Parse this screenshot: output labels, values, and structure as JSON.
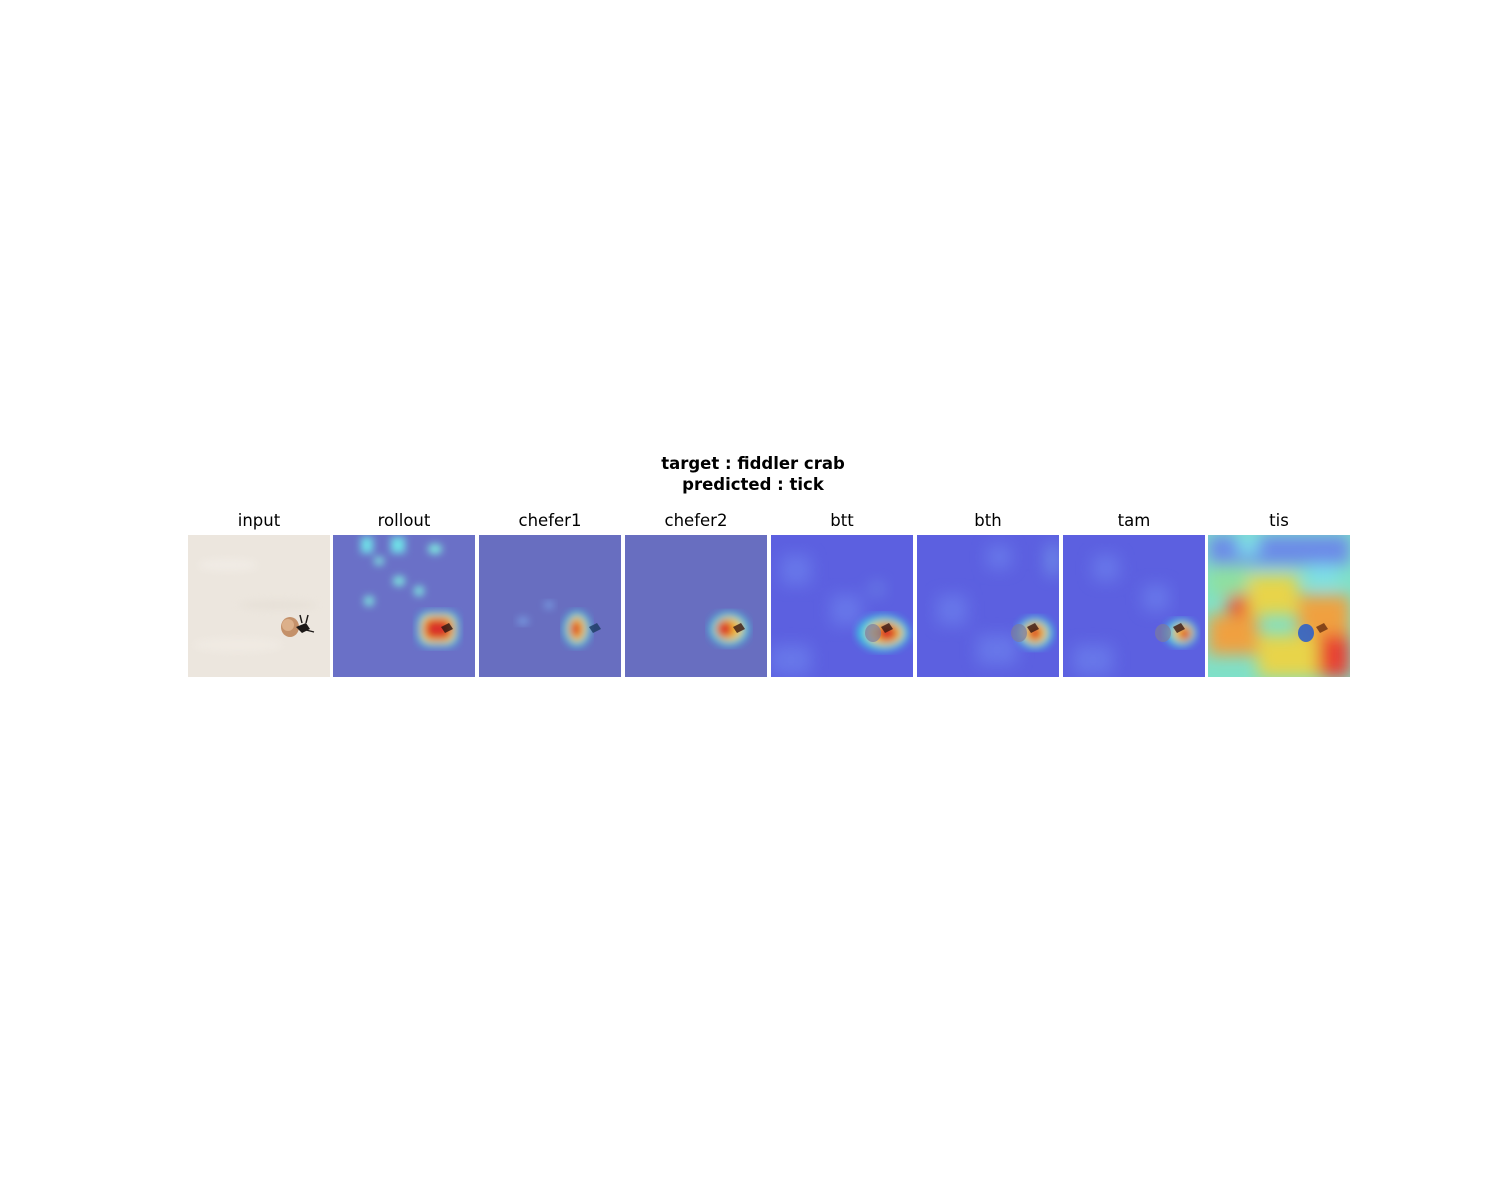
{
  "suptitle": {
    "target_line": "target : fiddler crab",
    "predicted_line": "predicted : tick"
  },
  "panels": [
    {
      "label": "input"
    },
    {
      "label": "rollout"
    },
    {
      "label": "chefer1"
    },
    {
      "label": "chefer2"
    },
    {
      "label": "btt"
    },
    {
      "label": "bth"
    },
    {
      "label": "tam"
    },
    {
      "label": "tis"
    }
  ],
  "colors": {
    "background": "#ffffff",
    "sand": "#ece6de",
    "heat_low": "#5a5ee8",
    "heat_mid": "#3ec9e0",
    "heat_high": "#d9302a",
    "heat_warm": "#f2d23a"
  }
}
